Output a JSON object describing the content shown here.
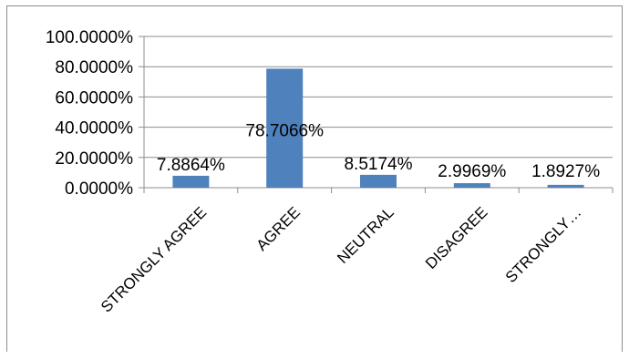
{
  "chart_data": {
    "type": "bar",
    "categories": [
      "STRONGLY AGREE",
      "AGREE",
      "NEUTRAL",
      "DISAGREE",
      "STRONGLY…"
    ],
    "values": [
      7.8864,
      78.7066,
      8.5174,
      2.9969,
      1.8927
    ],
    "data_labels": [
      "7.8864%",
      "78.7066%",
      "8.5174%",
      "2.9969%",
      "1.8927%"
    ],
    "y_ticks": [
      "0.0000%",
      "20.0000%",
      "40.0000%",
      "60.0000%",
      "80.0000%",
      "100.0000%"
    ],
    "ylim": [
      0,
      100
    ],
    "grid": true,
    "legend": "none",
    "bar_color": "#4f81bd",
    "title": "",
    "xlabel": "",
    "ylabel": ""
  }
}
